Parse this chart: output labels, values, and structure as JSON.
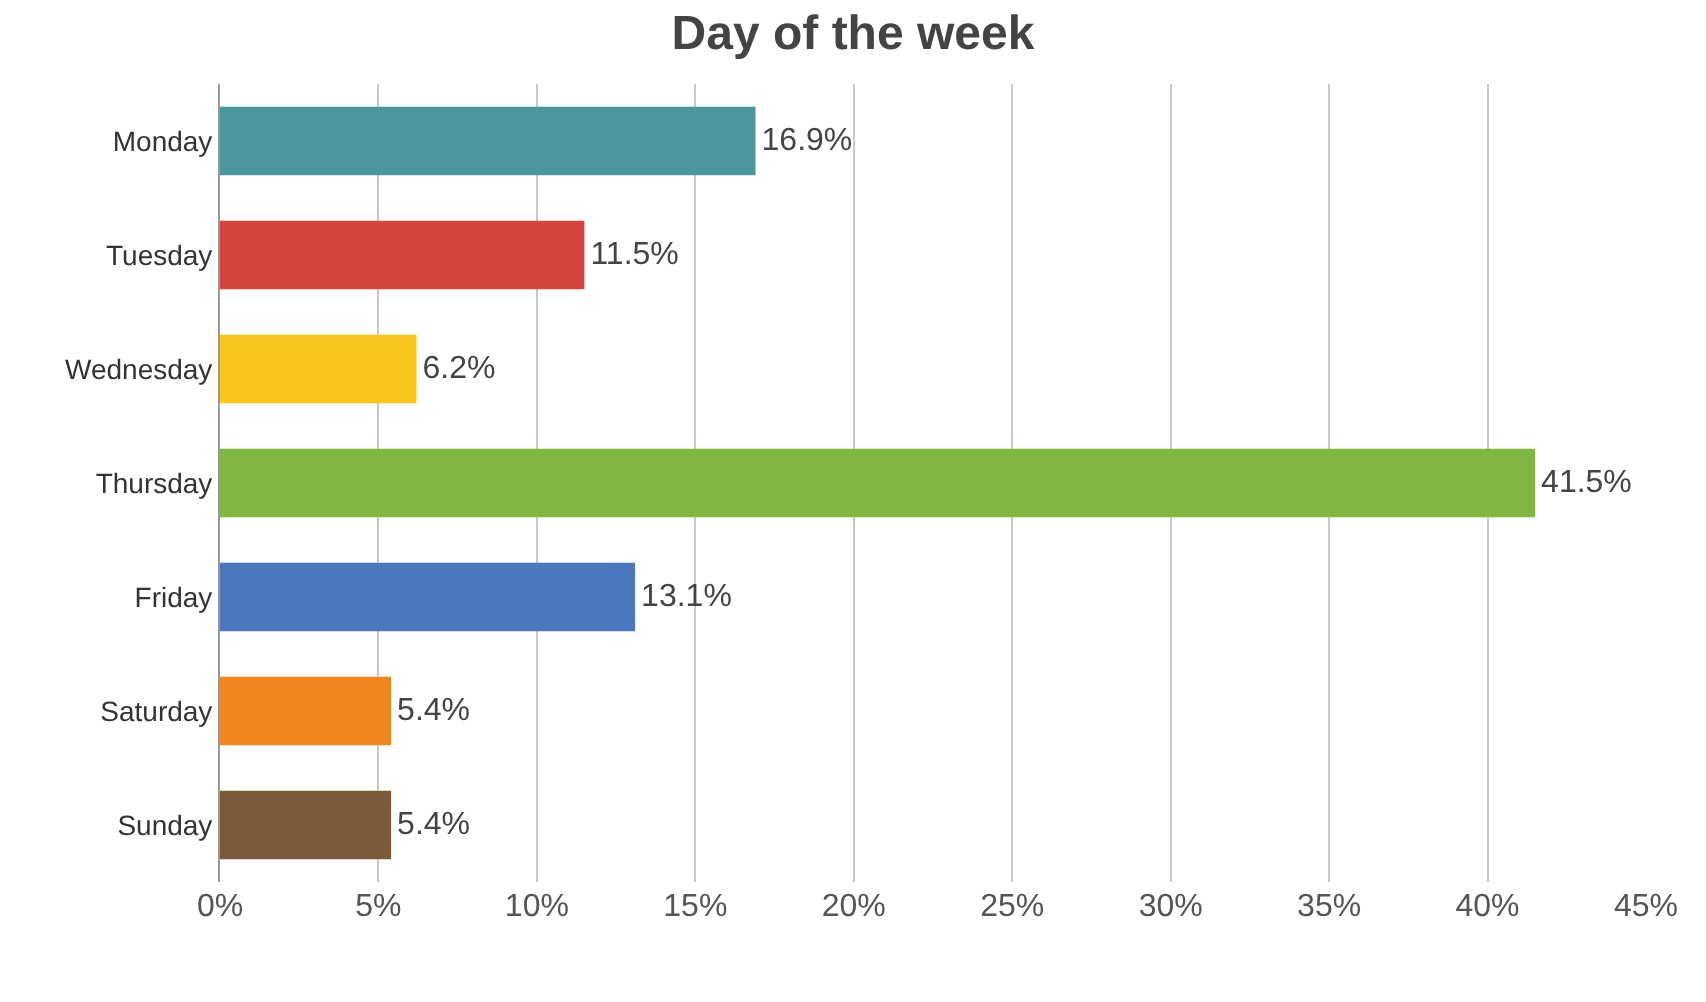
{
  "chart_data": {
    "type": "bar",
    "orientation": "horizontal",
    "title": "Day of the week",
    "categories": [
      "Monday",
      "Tuesday",
      "Wednesday",
      "Thursday",
      "Friday",
      "Saturday",
      "Sunday"
    ],
    "values": [
      16.9,
      11.5,
      6.2,
      41.5,
      13.1,
      5.4,
      5.4
    ],
    "value_labels": [
      "16.9%",
      "11.5%",
      "6.2%",
      "41.5%",
      "13.1%",
      "5.4%",
      "5.4%"
    ],
    "colors": [
      "#4a979d",
      "#d6443f",
      "#fcc51b",
      "#7fb742",
      "#4b77bf",
      "#f0871d",
      "#7b5a3a"
    ],
    "xlim": [
      0,
      45
    ],
    "xticks": [
      {
        "value": 0,
        "label": "0%"
      },
      {
        "value": 5,
        "label": "5%"
      },
      {
        "value": 10,
        "label": "10%"
      },
      {
        "value": 15,
        "label": "15%"
      },
      {
        "value": 20,
        "label": "20%"
      },
      {
        "value": 25,
        "label": "25%"
      },
      {
        "value": 30,
        "label": "30%"
      },
      {
        "value": 35,
        "label": "35%"
      },
      {
        "value": 40,
        "label": "40%"
      },
      {
        "value": 45,
        "label": "45%"
      }
    ],
    "grid": "x",
    "legend": false
  }
}
